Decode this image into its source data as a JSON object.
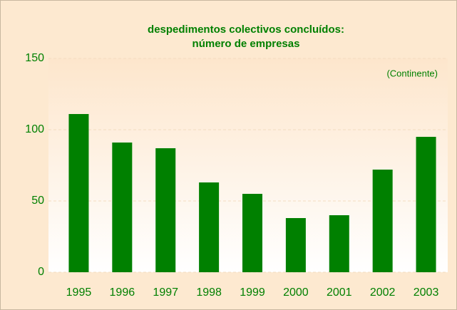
{
  "chart_data": {
    "type": "bar",
    "title": [
      "despedimentos colectivos concluídos:",
      "número de empresas"
    ],
    "annotation": "(Continente)",
    "categories": [
      "1995",
      "1996",
      "1997",
      "1998",
      "1999",
      "2000",
      "2001",
      "2002",
      "2003"
    ],
    "values": [
      111,
      91,
      87,
      63,
      55,
      38,
      40,
      72,
      95
    ],
    "color": "#008000",
    "ylim": [
      0,
      150
    ],
    "yticks": [
      0,
      50,
      100,
      150
    ],
    "grid": true
  }
}
